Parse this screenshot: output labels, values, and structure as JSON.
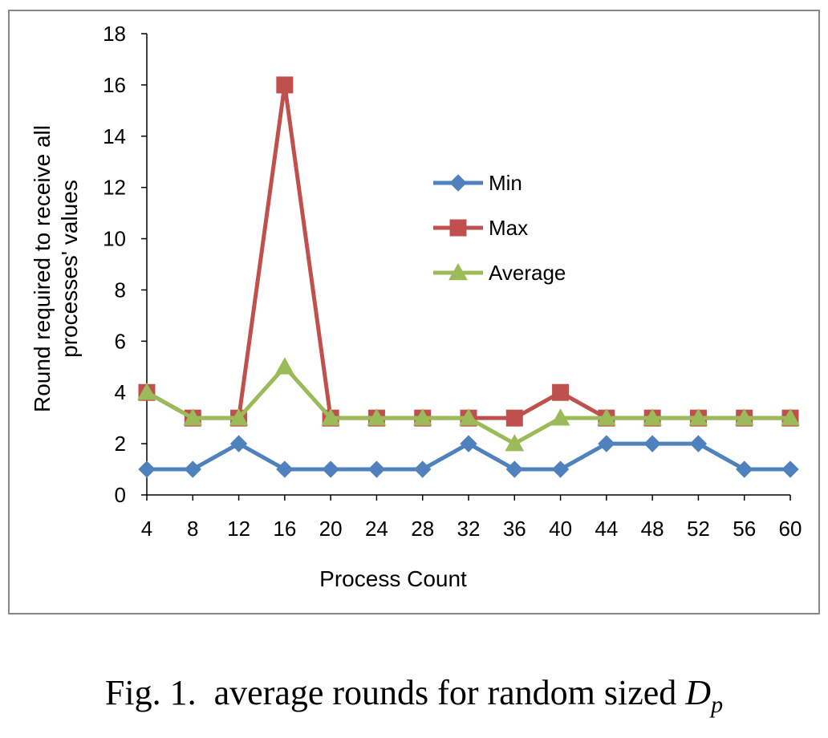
{
  "chart_data": {
    "type": "line",
    "title": "",
    "xlabel": "Process Count",
    "ylabel_lines": [
      "Round required to receive all",
      "processes' values"
    ],
    "ylabel": "Round required to receive all processes' values",
    "categories": [
      "4",
      "8",
      "12",
      "16",
      "20",
      "24",
      "28",
      "32",
      "36",
      "40",
      "44",
      "48",
      "52",
      "56",
      "60"
    ],
    "ylim": [
      0,
      18
    ],
    "yticks": [
      0,
      2,
      4,
      6,
      8,
      10,
      12,
      14,
      16,
      18
    ],
    "grid": false,
    "legend_position": "center-right",
    "series": [
      {
        "name": "Min",
        "color": "#4f81bd",
        "marker": "diamond",
        "values": [
          1,
          1,
          2,
          1,
          1,
          1,
          1,
          2,
          1,
          1,
          2,
          2,
          2,
          1,
          1
        ]
      },
      {
        "name": "Max",
        "color": "#c0504d",
        "marker": "square",
        "values": [
          4,
          3,
          3,
          16,
          3,
          3,
          3,
          3,
          3,
          4,
          3,
          3,
          3,
          3,
          3
        ]
      },
      {
        "name": "Average",
        "color": "#9bbb59",
        "marker": "triangle",
        "values": [
          4,
          3,
          3,
          5,
          3,
          3,
          3,
          3,
          2,
          3,
          3,
          3,
          3,
          3,
          3
        ]
      }
    ]
  },
  "caption": {
    "prefix": "Fig. 1.",
    "text": "average rounds for random sized",
    "math_var": "D",
    "math_sub": "p"
  }
}
